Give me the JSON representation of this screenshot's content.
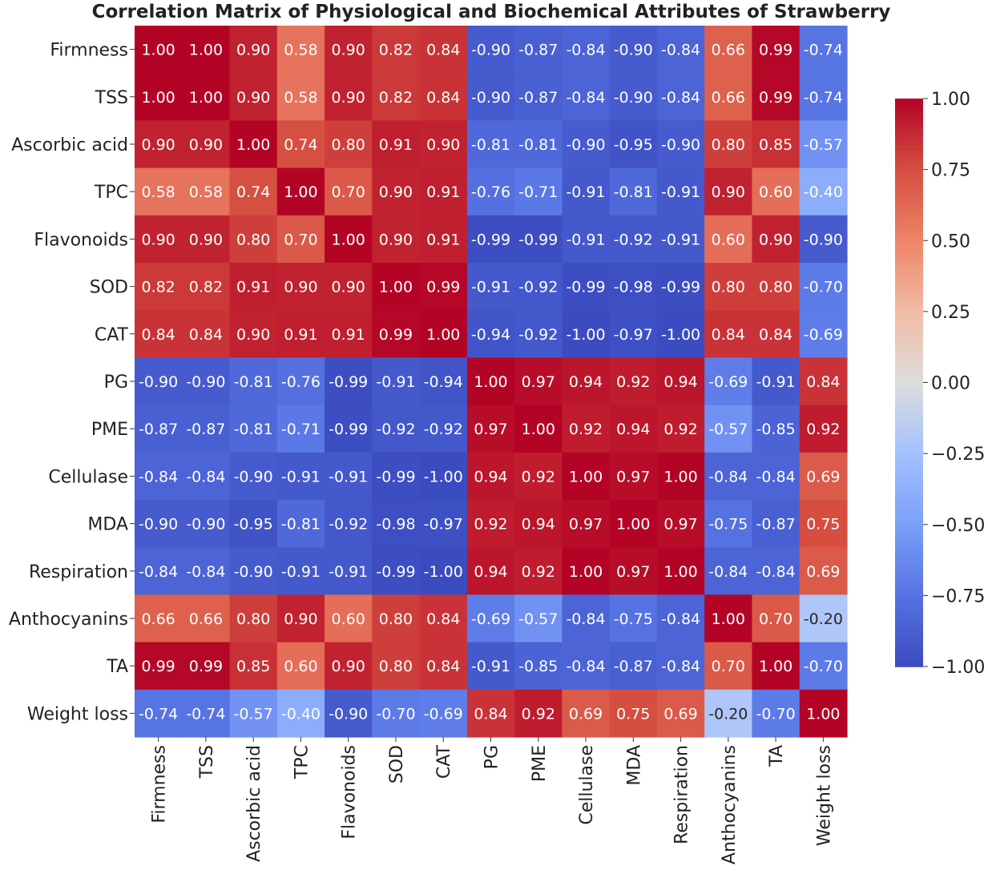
{
  "chart_data": {
    "type": "heatmap",
    "title": "Correlation Matrix of Physiological and Biochemical Attributes of Strawberry",
    "xlabel": "",
    "ylabel": "",
    "colormap": "coolwarm",
    "color_range": [
      -1.0,
      1.0
    ],
    "labels": [
      "Firmness",
      "TSS",
      "Ascorbic acid",
      "TPC",
      "Flavonoids",
      "SOD",
      "CAT",
      "PG",
      "PME",
      "Cellulase",
      "MDA",
      "Respiration",
      "Anthocyanins",
      "TA",
      "Weight loss"
    ],
    "matrix": [
      [
        1.0,
        1.0,
        0.9,
        0.58,
        0.9,
        0.82,
        0.84,
        -0.9,
        -0.87,
        -0.84,
        -0.9,
        -0.84,
        0.66,
        0.99,
        -0.74
      ],
      [
        1.0,
        1.0,
        0.9,
        0.58,
        0.9,
        0.82,
        0.84,
        -0.9,
        -0.87,
        -0.84,
        -0.9,
        -0.84,
        0.66,
        0.99,
        -0.74
      ],
      [
        0.9,
        0.9,
        1.0,
        0.74,
        0.8,
        0.91,
        0.9,
        -0.81,
        -0.81,
        -0.9,
        -0.95,
        -0.9,
        0.8,
        0.85,
        -0.57
      ],
      [
        0.58,
        0.58,
        0.74,
        1.0,
        0.7,
        0.9,
        0.91,
        -0.76,
        -0.71,
        -0.91,
        -0.81,
        -0.91,
        0.9,
        0.6,
        -0.4
      ],
      [
        0.9,
        0.9,
        0.8,
        0.7,
        1.0,
        0.9,
        0.91,
        -0.99,
        -0.99,
        -0.91,
        -0.92,
        -0.91,
        0.6,
        0.9,
        -0.9
      ],
      [
        0.82,
        0.82,
        0.91,
        0.9,
        0.9,
        1.0,
        0.99,
        -0.91,
        -0.92,
        -0.99,
        -0.98,
        -0.99,
        0.8,
        0.8,
        -0.7
      ],
      [
        0.84,
        0.84,
        0.9,
        0.91,
        0.91,
        0.99,
        1.0,
        -0.94,
        -0.92,
        -1.0,
        -0.97,
        -1.0,
        0.84,
        0.84,
        -0.69
      ],
      [
        -0.9,
        -0.9,
        -0.81,
        -0.76,
        -0.99,
        -0.91,
        -0.94,
        1.0,
        0.97,
        0.94,
        0.92,
        0.94,
        -0.69,
        -0.91,
        0.84
      ],
      [
        -0.87,
        -0.87,
        -0.81,
        -0.71,
        -0.99,
        -0.92,
        -0.92,
        0.97,
        1.0,
        0.92,
        0.94,
        0.92,
        -0.57,
        -0.85,
        0.92
      ],
      [
        -0.84,
        -0.84,
        -0.9,
        -0.91,
        -0.91,
        -0.99,
        -1.0,
        0.94,
        0.92,
        1.0,
        0.97,
        1.0,
        -0.84,
        -0.84,
        0.69
      ],
      [
        -0.9,
        -0.9,
        -0.95,
        -0.81,
        -0.92,
        -0.98,
        -0.97,
        0.92,
        0.94,
        0.97,
        1.0,
        0.97,
        -0.75,
        -0.87,
        0.75
      ],
      [
        -0.84,
        -0.84,
        -0.9,
        -0.91,
        -0.91,
        -0.99,
        -1.0,
        0.94,
        0.92,
        1.0,
        0.97,
        1.0,
        -0.84,
        -0.84,
        0.69
      ],
      [
        0.66,
        0.66,
        0.8,
        0.9,
        0.6,
        0.8,
        0.84,
        -0.69,
        -0.57,
        -0.84,
        -0.75,
        -0.84,
        1.0,
        0.7,
        -0.2
      ],
      [
        0.99,
        0.99,
        0.85,
        0.6,
        0.9,
        0.8,
        0.84,
        -0.91,
        -0.85,
        -0.84,
        -0.87,
        -0.84,
        0.7,
        1.0,
        -0.7
      ],
      [
        -0.74,
        -0.74,
        -0.57,
        -0.4,
        -0.9,
        -0.7,
        -0.69,
        0.84,
        0.92,
        0.69,
        0.75,
        0.69,
        -0.2,
        -0.7,
        1.0
      ]
    ],
    "colorbar_ticks": [
      1.0,
      0.75,
      0.5,
      0.25,
      0.0,
      -0.25,
      -0.5,
      -0.75,
      -1.0
    ],
    "colorbar_tick_labels": [
      "1.00",
      "0.75",
      "0.50",
      "0.25",
      "0.00",
      "−0.25",
      "−0.50",
      "−0.75",
      "−1.00"
    ],
    "annotation_format": "0.00",
    "grid": false,
    "legend": "colorbar-right"
  }
}
